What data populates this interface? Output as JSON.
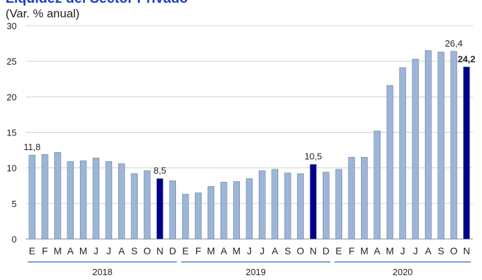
{
  "chart_data": {
    "type": "bar",
    "title": "Liquidez del Sector Privado",
    "subtitle": "(Var. % anual)",
    "categories": [
      "E",
      "F",
      "M",
      "A",
      "M",
      "J",
      "J",
      "A",
      "S",
      "O",
      "N",
      "D",
      "E",
      "F",
      "M",
      "A",
      "M",
      "J",
      "J",
      "A",
      "S",
      "O",
      "N",
      "D",
      "E",
      "F",
      "M",
      "A",
      "M",
      "J",
      "J",
      "A",
      "S",
      "O",
      "N"
    ],
    "values": [
      11.8,
      11.9,
      12.2,
      10.9,
      11.0,
      11.4,
      10.9,
      10.6,
      9.2,
      9.6,
      8.5,
      8.2,
      6.3,
      6.5,
      7.4,
      8.0,
      8.1,
      8.5,
      9.6,
      9.8,
      9.3,
      9.2,
      10.5,
      9.4,
      9.8,
      11.5,
      11.5,
      15.2,
      21.6,
      24.1,
      25.3,
      26.5,
      26.3,
      26.4,
      24.2
    ],
    "value_labels": [
      "11,8",
      null,
      null,
      null,
      null,
      null,
      null,
      null,
      null,
      null,
      "8,5",
      null,
      null,
      null,
      null,
      null,
      null,
      null,
      null,
      null,
      null,
      null,
      "10,5",
      null,
      null,
      null,
      null,
      null,
      null,
      null,
      null,
      null,
      null,
      "26,4",
      "24,2"
    ],
    "colors": [
      "#9db5d6",
      "#9db5d6",
      "#9db5d6",
      "#9db5d6",
      "#9db5d6",
      "#9db5d6",
      "#9db5d6",
      "#9db5d6",
      "#9db5d6",
      "#9db5d6",
      "#00008b",
      "#9db5d6",
      "#9db5d6",
      "#9db5d6",
      "#9db5d6",
      "#9db5d6",
      "#9db5d6",
      "#9db5d6",
      "#9db5d6",
      "#9db5d6",
      "#9db5d6",
      "#9db5d6",
      "#00008b",
      "#9db5d6",
      "#9db5d6",
      "#9db5d6",
      "#9db5d6",
      "#9db5d6",
      "#9db5d6",
      "#9db5d6",
      "#9db5d6",
      "#9db5d6",
      "#9db5d6",
      "#9db5d6",
      "#00008b"
    ],
    "groups": [
      {
        "name": "2018",
        "count": 12
      },
      {
        "name": "2019",
        "count": 12
      },
      {
        "name": "2020",
        "count": 11
      }
    ],
    "ylim": [
      0,
      30
    ],
    "yticks": [
      0,
      5,
      10,
      15,
      20,
      25,
      30
    ],
    "grid": true
  }
}
